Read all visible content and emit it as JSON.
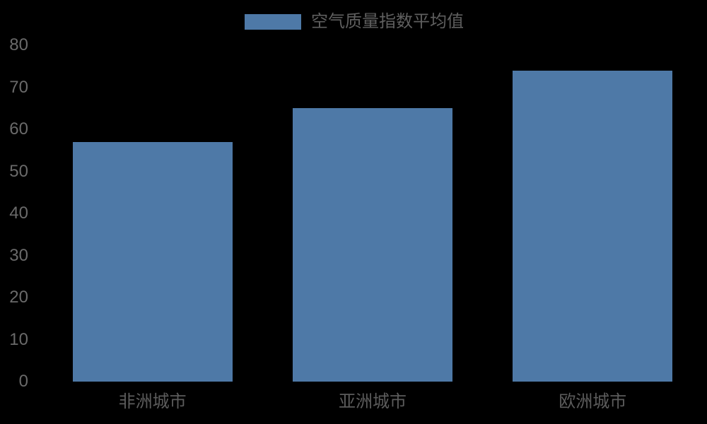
{
  "colors": {
    "bar": "#4E79A7",
    "axis_tick_text": "#6a6a6a",
    "category_text": "#5c5c5c",
    "legend_text": "#5f5f5f",
    "background": "#000000"
  },
  "legend": {
    "label": "空气质量指数平均值"
  },
  "chart_data": {
    "type": "bar",
    "title": "",
    "categories": [
      "非洲城市",
      "亚洲城市",
      "欧洲城市"
    ],
    "values": [
      57,
      65,
      74
    ],
    "series": [
      {
        "name": "空气质量指数平均值",
        "values": [
          57,
          65,
          74
        ]
      }
    ],
    "xlabel": "",
    "ylabel": "",
    "ylim": [
      0,
      80
    ],
    "yticks": [
      0,
      10,
      20,
      30,
      40,
      50,
      60,
      70,
      80
    ],
    "grid": false,
    "legend_position": "top-center",
    "bar_color": "#4E79A7"
  }
}
